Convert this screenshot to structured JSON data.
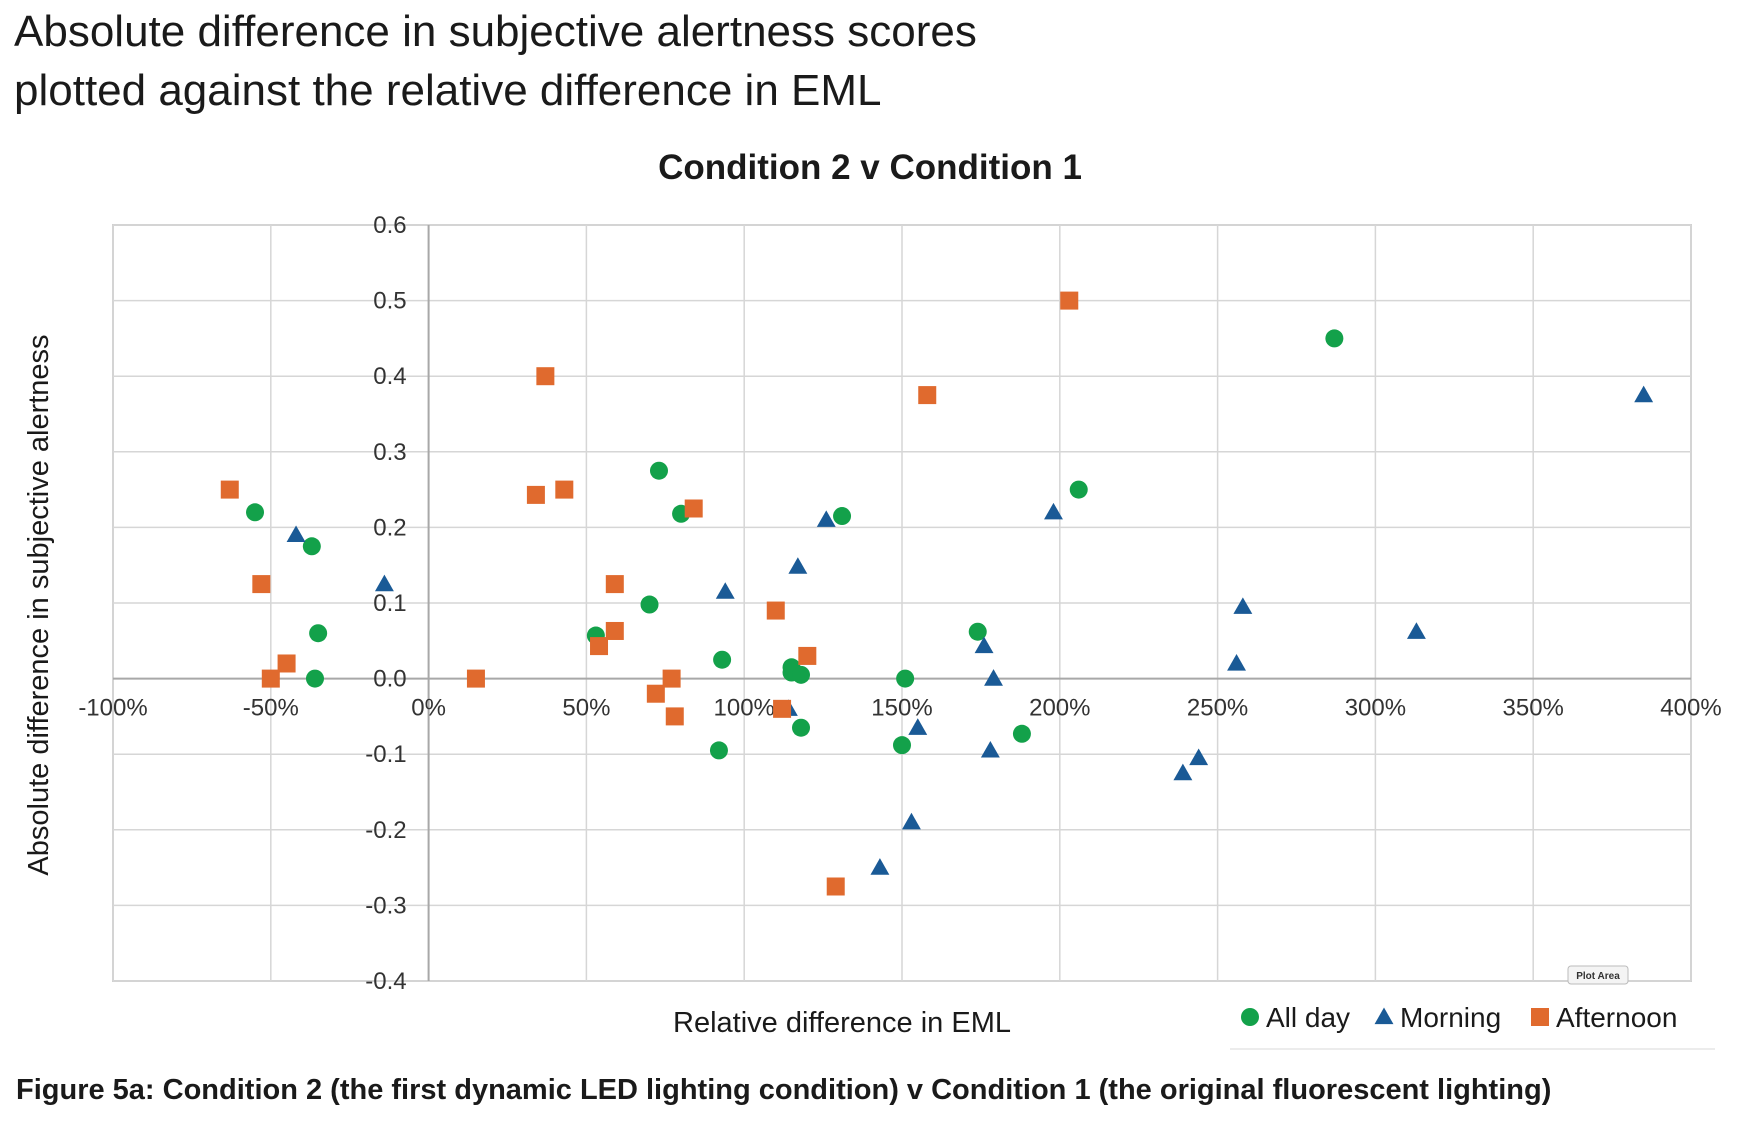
{
  "heading": {
    "line1": "Absolute difference in subjective alertness scores",
    "line2": "plotted against the relative difference in EML"
  },
  "caption": "Figure 5a: Condition 2 (the first dynamic LED lighting condition) v Condition 1 (the original fluorescent lighting)",
  "plot_area_label": "Plot Area",
  "chart_data": {
    "type": "scatter",
    "title": "Condition 2 v Condition 1",
    "xlabel": "Relative difference in EML",
    "ylabel": "Absolute difference in subjective alertness",
    "xlim": [
      -100,
      400
    ],
    "ylim": [
      -0.4,
      0.6
    ],
    "x_unit": "%",
    "x_ticks": [
      "-100%",
      "-50%",
      "0%",
      "50%",
      "100%",
      "150%",
      "200%",
      "250%",
      "300%",
      "350%",
      "400%"
    ],
    "y_ticks": [
      "0.6",
      "0.5",
      "0.4",
      "0.3",
      "0.2",
      "0.1",
      "0.0",
      "-0.1",
      "-0.2",
      "-0.3",
      "-0.4"
    ],
    "grid": true,
    "legend_position": "bottom-right",
    "series": [
      {
        "name": "All day",
        "marker": "circle",
        "color": "#13a14a",
        "points": [
          [
            -55,
            0.22
          ],
          [
            -37,
            0.175
          ],
          [
            -35,
            0.06
          ],
          [
            -36,
            0.0
          ],
          [
            53,
            0.057
          ],
          [
            70,
            0.098
          ],
          [
            73,
            0.275
          ],
          [
            80,
            0.218
          ],
          [
            93,
            0.025
          ],
          [
            92,
            -0.095
          ],
          [
            115,
            0.015
          ],
          [
            115,
            0.008
          ],
          [
            118,
            0.005
          ],
          [
            118,
            -0.065
          ],
          [
            131,
            0.215
          ],
          [
            151,
            0.0
          ],
          [
            150,
            -0.088
          ],
          [
            174,
            0.062
          ],
          [
            188,
            -0.073
          ],
          [
            206,
            0.25
          ],
          [
            287,
            0.45
          ]
        ]
      },
      {
        "name": "Morning",
        "marker": "triangle",
        "color": "#1a5a96",
        "points": [
          [
            -42,
            0.19
          ],
          [
            -14,
            0.125
          ],
          [
            94,
            0.115
          ],
          [
            114,
            -0.04
          ],
          [
            117,
            0.148
          ],
          [
            126,
            0.21
          ],
          [
            143,
            -0.25
          ],
          [
            153,
            -0.19
          ],
          [
            155,
            -0.065
          ],
          [
            176,
            0.043
          ],
          [
            178,
            -0.095
          ],
          [
            179,
            0.0
          ],
          [
            198,
            0.22
          ],
          [
            239,
            -0.125
          ],
          [
            244,
            -0.105
          ],
          [
            256,
            0.02
          ],
          [
            258,
            0.095
          ],
          [
            313,
            0.062
          ],
          [
            385,
            0.375
          ]
        ]
      },
      {
        "name": "Afternoon",
        "marker": "square",
        "color": "#e06a2e",
        "points": [
          [
            -63,
            0.25
          ],
          [
            -53,
            0.125
          ],
          [
            -50,
            0.0
          ],
          [
            -45,
            0.02
          ],
          [
            15,
            0.0
          ],
          [
            34,
            0.243
          ],
          [
            37,
            0.4
          ],
          [
            43,
            0.25
          ],
          [
            54,
            0.043
          ],
          [
            59,
            0.125
          ],
          [
            59,
            0.063
          ],
          [
            72,
            -0.02
          ],
          [
            77,
            0.0
          ],
          [
            78,
            -0.05
          ],
          [
            84,
            0.225
          ],
          [
            110,
            0.09
          ],
          [
            112,
            -0.04
          ],
          [
            120,
            0.03
          ],
          [
            129,
            -0.275
          ],
          [
            158,
            0.375
          ],
          [
            203,
            0.5
          ]
        ]
      }
    ]
  }
}
